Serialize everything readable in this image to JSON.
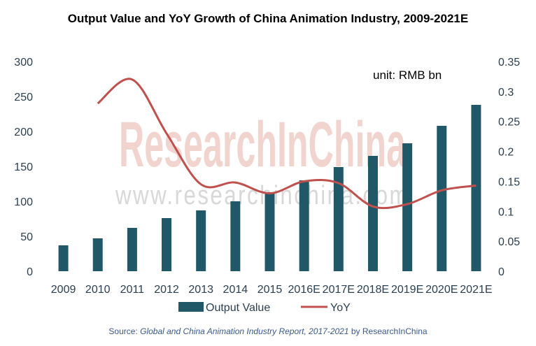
{
  "colors": {
    "bar": "#215868",
    "line": "#c0504d",
    "axis_text": "#2a3f50",
    "source_text": "#3a5a8a",
    "watermark": "#e8b0a8"
  },
  "watermark": {
    "brand": "ResearchInChina",
    "url": "www.researchinchina.com"
  },
  "unit_label": "unit: RMB bn",
  "source": {
    "prefix": "Source: ",
    "italic": "Global and China Animation Industry Report, 2017-2021",
    "suffix": " by ResearchInChina"
  },
  "chart_data": {
    "type": "bar",
    "title": "Output Value and YoY Growth of China Animation Industry, 2009-2021E",
    "categories": [
      "2009",
      "2010",
      "2011",
      "2012",
      "2013",
      "2014",
      "2015",
      "2016E",
      "2017E",
      "2018E",
      "2019E",
      "2020E",
      "2021E"
    ],
    "series": [
      {
        "name": "Output Value",
        "type": "bar",
        "axis": "left",
        "values": [
          37,
          47,
          62,
          76,
          87,
          100,
          113,
          130,
          149,
          165,
          183,
          208,
          238
        ]
      },
      {
        "name": "YoY",
        "type": "line",
        "axis": "right",
        "values": [
          null,
          0.28,
          0.32,
          0.23,
          0.145,
          0.148,
          0.13,
          0.15,
          0.147,
          0.108,
          0.112,
          0.135,
          0.143
        ]
      }
    ],
    "y_left": {
      "ticks": [
        "0",
        "50",
        "100",
        "150",
        "200",
        "250",
        "300"
      ],
      "range": [
        0,
        300
      ]
    },
    "y_right": {
      "ticks": [
        "0",
        "0.05",
        "0.1",
        "0.15",
        "0.2",
        "0.25",
        "0.3",
        "0.35"
      ],
      "range": [
        0,
        0.35
      ]
    },
    "grid": false,
    "legend_position": "bottom"
  }
}
